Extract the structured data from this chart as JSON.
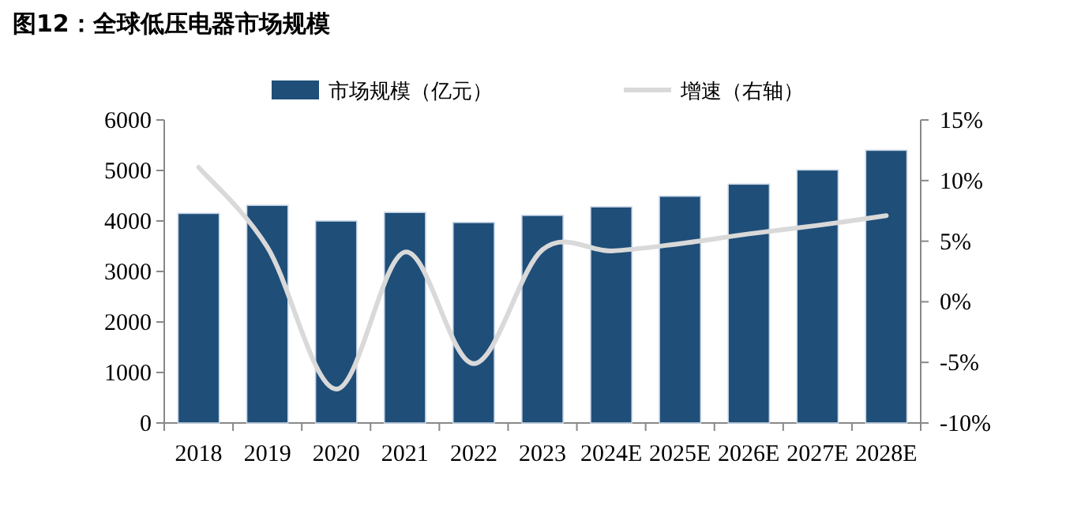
{
  "chart_data": {
    "type": "bar",
    "title": "图12：全球低压电器市场规模",
    "categories": [
      "2018",
      "2019",
      "2020",
      "2021",
      "2022",
      "2023",
      "2024E",
      "2025E",
      "2026E",
      "2027E",
      "2028E"
    ],
    "series": [
      {
        "name": "市场规模（亿元）",
        "color": "#1f4e79",
        "values": [
          4150,
          4310,
          4000,
          4170,
          3970,
          4110,
          4280,
          4490,
          4730,
          5010,
          5400
        ]
      },
      {
        "name": "增速（右轴）",
        "type": "line",
        "axis": "y2",
        "color": "#d9d9d9",
        "values": [
          11.1,
          4.5,
          -7.2,
          4.1,
          -5.1,
          4.3,
          4.2,
          4.8,
          5.6,
          6.3,
          7.1
        ]
      }
    ],
    "ylim": [
      0,
      6000
    ],
    "yticks": [
      0,
      1000,
      2000,
      3000,
      4000,
      5000,
      6000
    ],
    "y2lim": [
      -10,
      15
    ],
    "y2ticks": [
      {
        "value": -10,
        "label": "-10%"
      },
      {
        "value": -5,
        "label": "-5%"
      },
      {
        "value": 0,
        "label": "0%"
      },
      {
        "value": 5,
        "label": "5%"
      },
      {
        "value": 10,
        "label": "10%"
      },
      {
        "value": 15,
        "label": "15%"
      }
    ],
    "legend": "top",
    "grid": false
  }
}
